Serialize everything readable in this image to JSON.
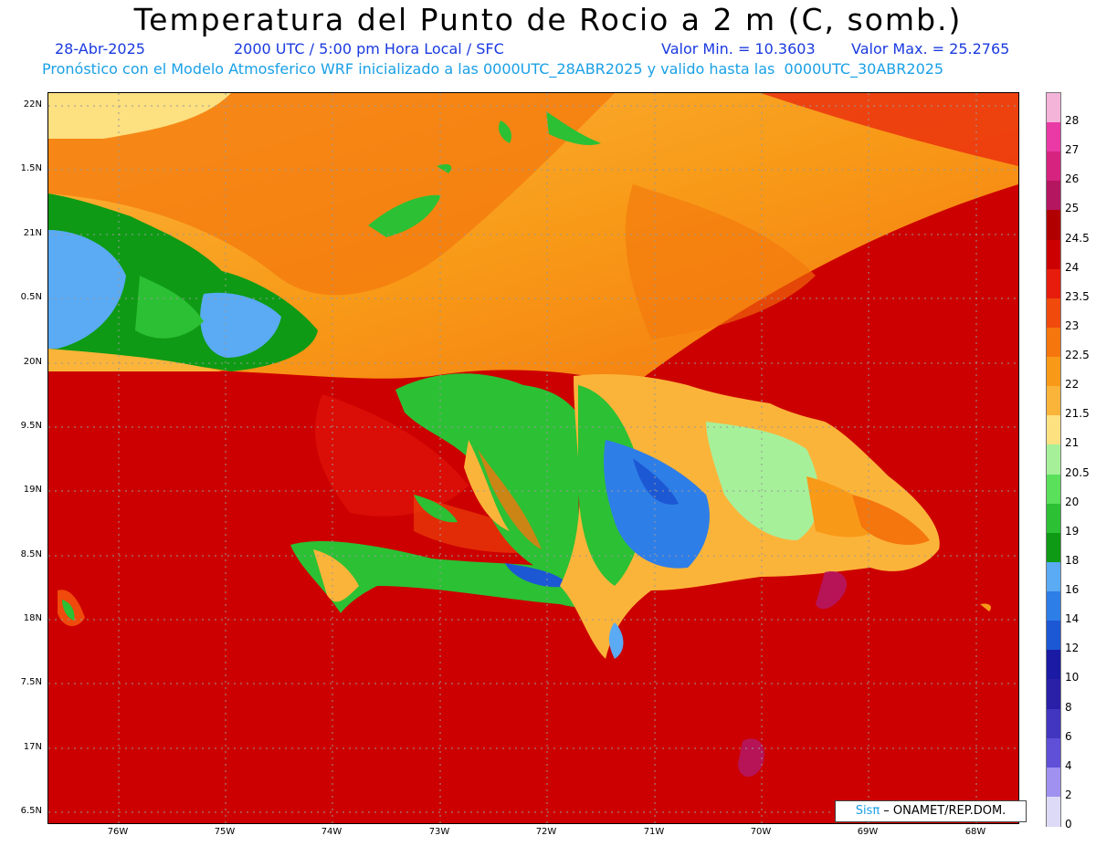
{
  "header": {
    "title": "Temperatura del Punto de Rocio a 2 m (C, somb.)",
    "date": "28-Abr-2025",
    "time": "2000 UTC / 5:00 pm Hora Local / SFC",
    "min": "Valor Min. = 10.3603",
    "max": "Valor Max. = 25.2765",
    "model": "Pronóstico con el Modelo Atmosferico WRF inicializado a las 0000UTC_28ABR2025 y valido hasta las  0000UTC_30ABR2025"
  },
  "axes": {
    "lat_labels": [
      "22N",
      "1.5N",
      "21N",
      "0.5N",
      "20N",
      "9.5N",
      "19N",
      "8.5N",
      "18N",
      "7.5N",
      "17N",
      "6.5N"
    ],
    "lon_labels": [
      "76W",
      "75W",
      "74W",
      "73W",
      "72W",
      "71W",
      "70W",
      "69W",
      "68W"
    ]
  },
  "colorbar": {
    "labels": [
      "28",
      "27",
      "26",
      "25",
      "24.5",
      "24",
      "23.5",
      "23",
      "22.5",
      "22",
      "21.5",
      "21",
      "20.5",
      "20",
      "19",
      "18",
      "16",
      "14",
      "12",
      "10",
      "8",
      "6",
      "4",
      "2",
      "0"
    ],
    "colors": [
      "#f4b4da",
      "#ea3aa6",
      "#d6237f",
      "#b41660",
      "#b00000",
      "#cc0000",
      "#e81c0c",
      "#f04a0c",
      "#f4760c",
      "#f89a18",
      "#fbb43a",
      "#fde080",
      "#a6f09a",
      "#5ae05a",
      "#2cc034",
      "#0e9a14",
      "#5aaaf4",
      "#2e7ee8",
      "#1c58d4",
      "#1a1aa4",
      "#2a20a8",
      "#4236c0",
      "#6050d8",
      "#a090f0",
      "#dcdaf6"
    ]
  },
  "credit": {
    "sis": "Sisπ",
    "org": " – ONAMET/REP.DOM."
  }
}
